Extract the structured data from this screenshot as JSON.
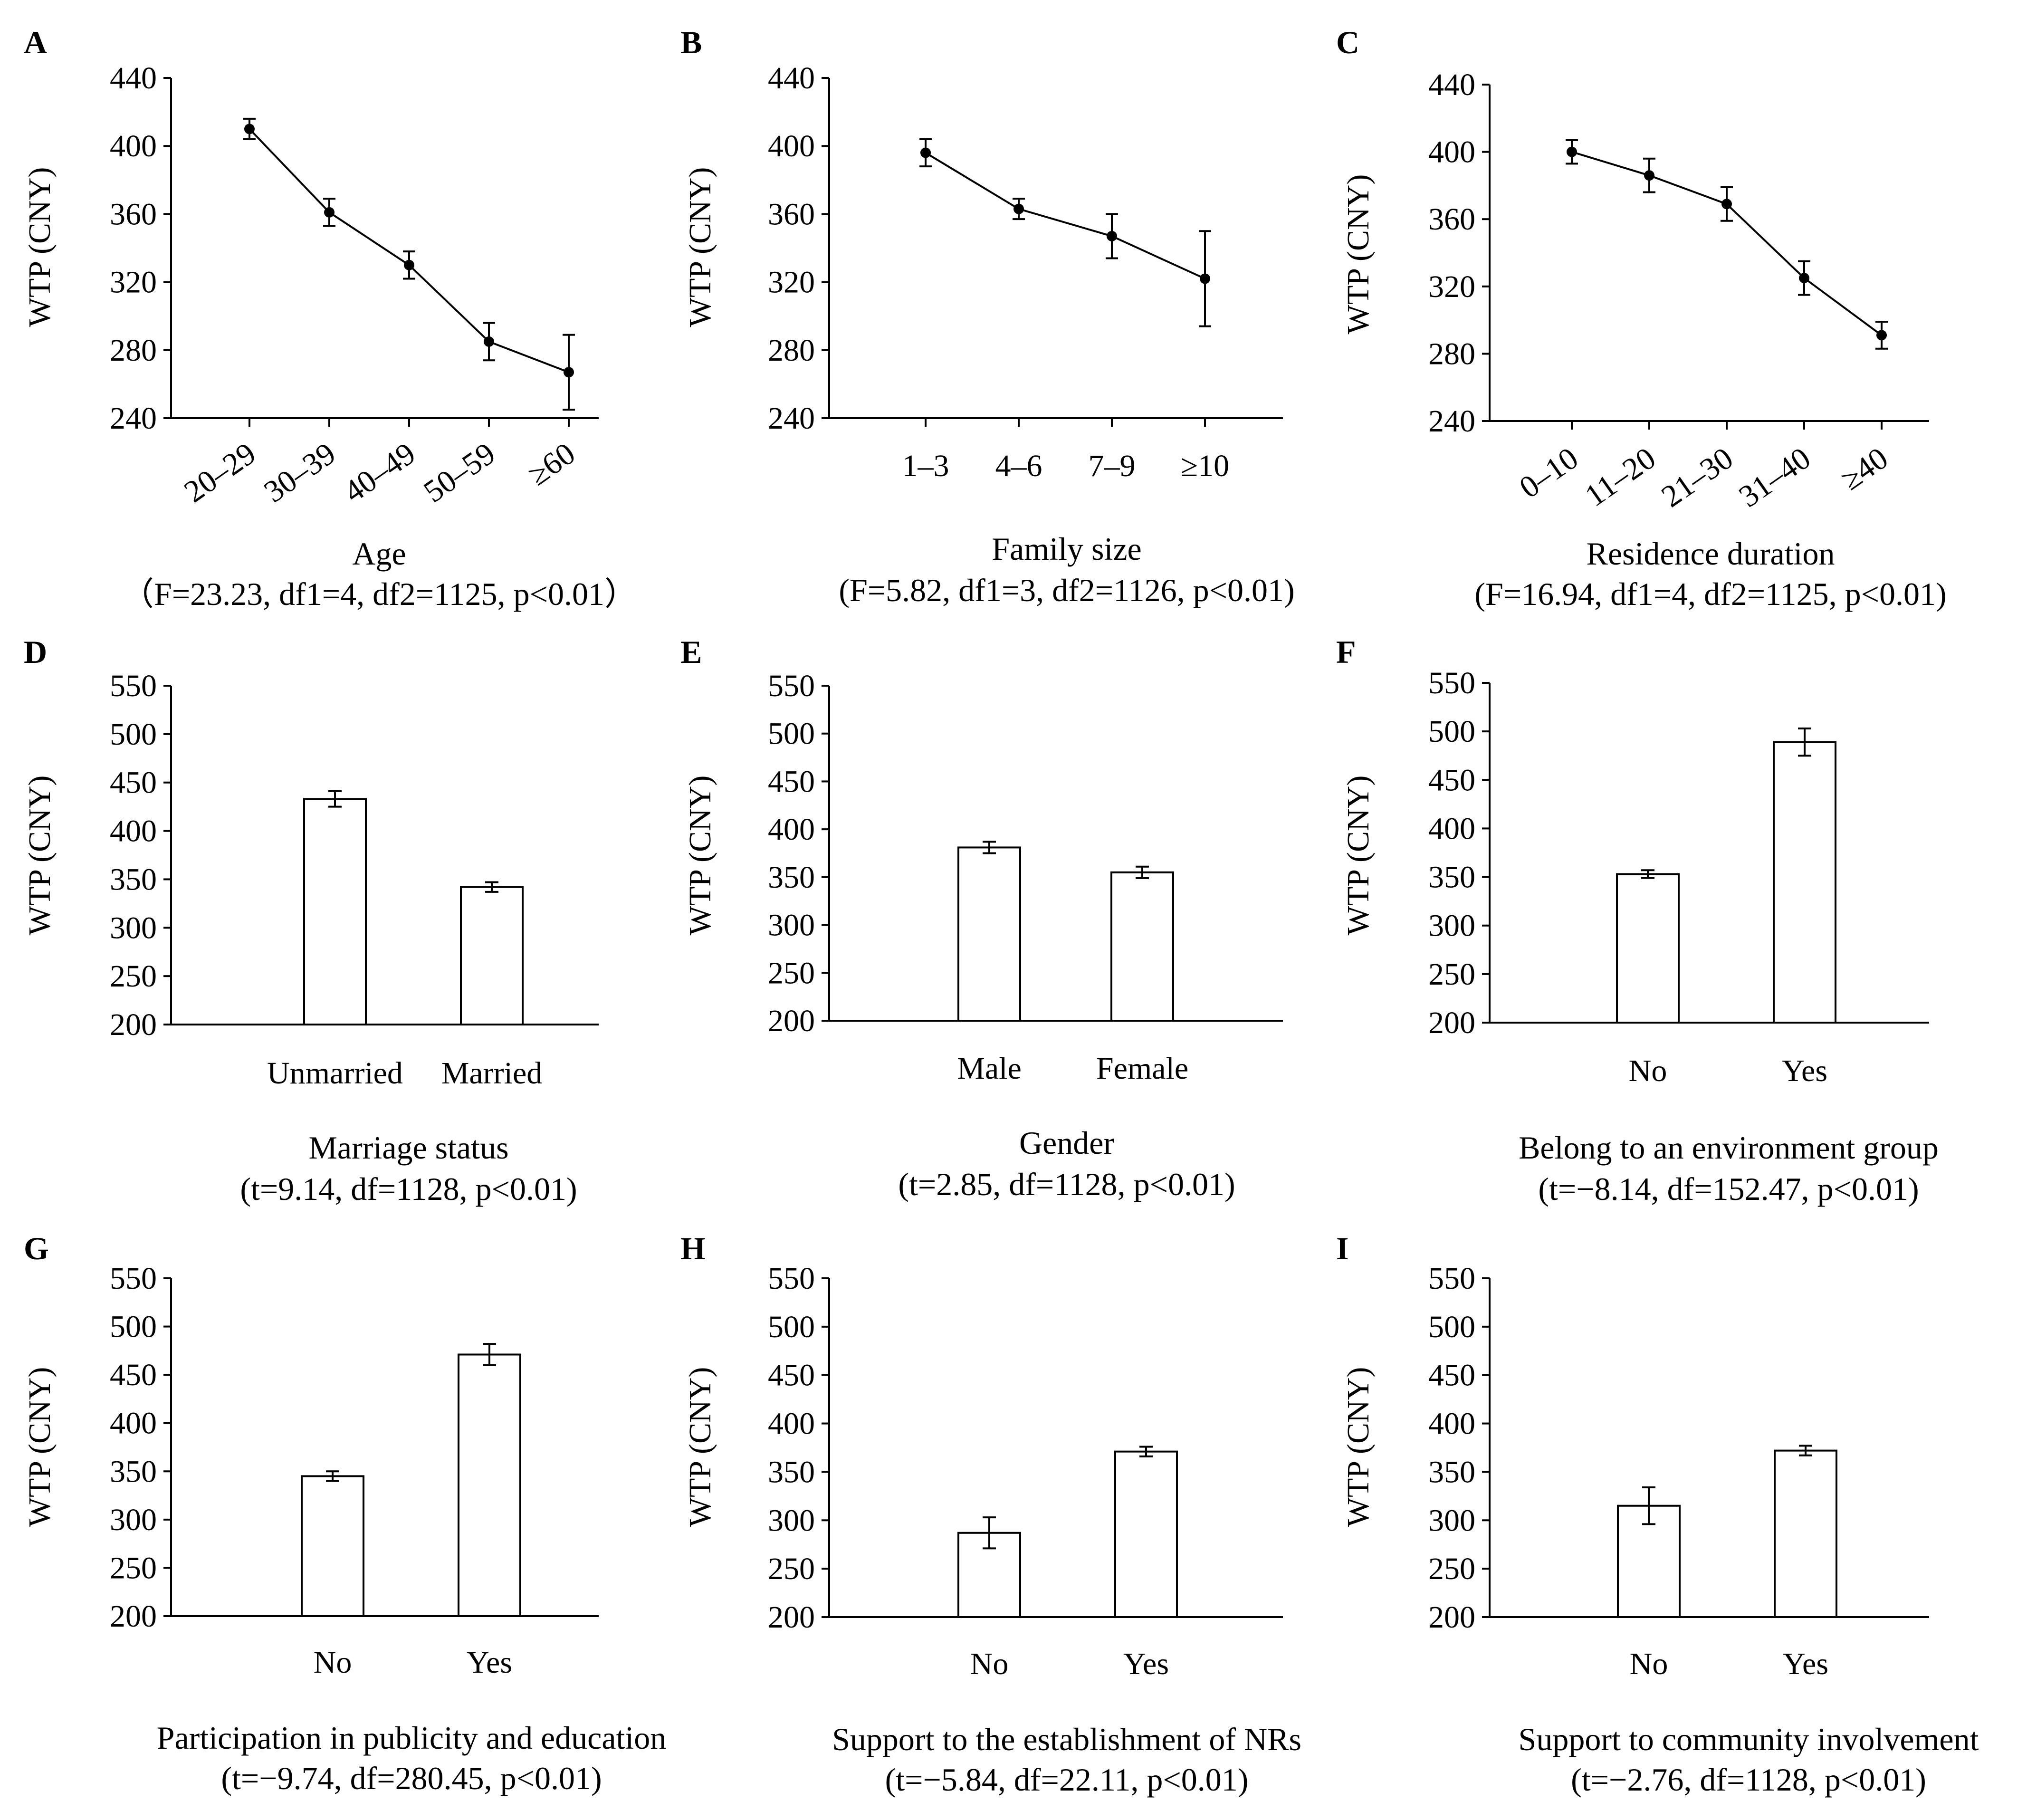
{
  "colors": {
    "axis": "#000000",
    "bar_fill": "#ffffff",
    "line": "#000000",
    "background": "#ffffff"
  },
  "chart_data": [
    {
      "panel": "A",
      "type": "line",
      "xlabel": "Age",
      "stat": "（F=23.23, df1=4, df2=1125, p<0.01）",
      "ylabel": "WTP (CNY)",
      "ylim": [
        240,
        440
      ],
      "yticks": [
        240,
        280,
        320,
        360,
        400,
        440
      ],
      "categories": [
        "20–29",
        "30–39",
        "40–49",
        "50–59",
        "≥60"
      ],
      "rotated": true,
      "values": [
        410,
        361,
        330,
        285,
        267
      ],
      "errors": [
        6,
        8,
        8,
        11,
        22
      ]
    },
    {
      "panel": "B",
      "type": "line",
      "xlabel": "Family size",
      "stat": "(F=5.82, df1=3, df2=1126, p<0.01)",
      "ylabel": "WTP (CNY)",
      "ylim": [
        240,
        440
      ],
      "yticks": [
        240,
        280,
        320,
        360,
        400,
        440
      ],
      "categories": [
        "1–3",
        "4–6",
        "7–9",
        "≥10"
      ],
      "rotated": false,
      "values": [
        396,
        363,
        347,
        322
      ],
      "errors": [
        8,
        6,
        13,
        28
      ]
    },
    {
      "panel": "C",
      "type": "line",
      "xlabel": "Residence duration",
      "stat": "(F=16.94, df1=4, df2=1125, p<0.01)",
      "ylabel": "WTP (CNY)",
      "ylim": [
        240,
        440
      ],
      "yticks": [
        240,
        280,
        320,
        360,
        400,
        440
      ],
      "categories": [
        "0–10",
        "11–20",
        "21–30",
        "31–40",
        "≥40"
      ],
      "rotated": true,
      "values": [
        400,
        386,
        369,
        325,
        291
      ],
      "errors": [
        7,
        10,
        10,
        10,
        8
      ]
    },
    {
      "panel": "D",
      "type": "bar",
      "xlabel": "Marriage status",
      "stat": "(t=9.14, df=1128, p<0.01)",
      "ylabel": "WTP (CNY)",
      "ylim": [
        200,
        550
      ],
      "yticks": [
        200,
        250,
        300,
        350,
        400,
        450,
        500,
        550
      ],
      "categories": [
        "Unmarried",
        "Married"
      ],
      "values": [
        433,
        342
      ],
      "errors": [
        8,
        5
      ]
    },
    {
      "panel": "E",
      "type": "bar",
      "xlabel": "Gender",
      "stat": "(t=2.85, df=1128, p<0.01)",
      "ylabel": "WTP (CNY)",
      "ylim": [
        200,
        550
      ],
      "yticks": [
        200,
        250,
        300,
        350,
        400,
        450,
        500,
        550
      ],
      "categories": [
        "Male",
        "Female"
      ],
      "values": [
        381,
        355
      ],
      "errors": [
        6,
        6
      ]
    },
    {
      "panel": "F",
      "type": "bar",
      "xlabel": "Belong to an environment group",
      "stat": "(t=−8.14, df=152.47, p<0.01)",
      "ylabel": "WTP (CNY)",
      "ylim": [
        200,
        550
      ],
      "yticks": [
        200,
        250,
        300,
        350,
        400,
        450,
        500,
        550
      ],
      "categories": [
        "No",
        "Yes"
      ],
      "values": [
        353,
        489
      ],
      "errors": [
        4,
        14
      ]
    },
    {
      "panel": "G",
      "type": "bar",
      "xlabel": "Participation in publicity and education",
      "stat": "(t=−9.74, df=280.45, p<0.01)",
      "ylabel": "WTP (CNY)",
      "ylim": [
        200,
        550
      ],
      "yticks": [
        200,
        250,
        300,
        350,
        400,
        450,
        500,
        550
      ],
      "categories": [
        "No",
        "Yes"
      ],
      "values": [
        345,
        471
      ],
      "errors": [
        5,
        11
      ]
    },
    {
      "panel": "H",
      "type": "bar",
      "xlabel": "Support to the establishment of NRs",
      "stat": "(t=−5.84, df=22.11, p<0.01)",
      "ylabel": "WTP (CNY)",
      "ylim": [
        200,
        550
      ],
      "yticks": [
        200,
        250,
        300,
        350,
        400,
        450,
        500,
        550
      ],
      "categories": [
        "No",
        "Yes"
      ],
      "values": [
        287,
        371
      ],
      "errors": [
        16,
        5
      ]
    },
    {
      "panel": "I",
      "type": "bar",
      "xlabel": "Support to community involvement",
      "stat": "(t=−2.76, df=1128, p<0.01)",
      "ylabel": "WTP (CNY)",
      "ylim": [
        200,
        550
      ],
      "yticks": [
        200,
        250,
        300,
        350,
        400,
        450,
        500,
        550
      ],
      "categories": [
        "No",
        "Yes"
      ],
      "values": [
        315,
        372
      ],
      "errors": [
        19,
        5
      ]
    }
  ]
}
